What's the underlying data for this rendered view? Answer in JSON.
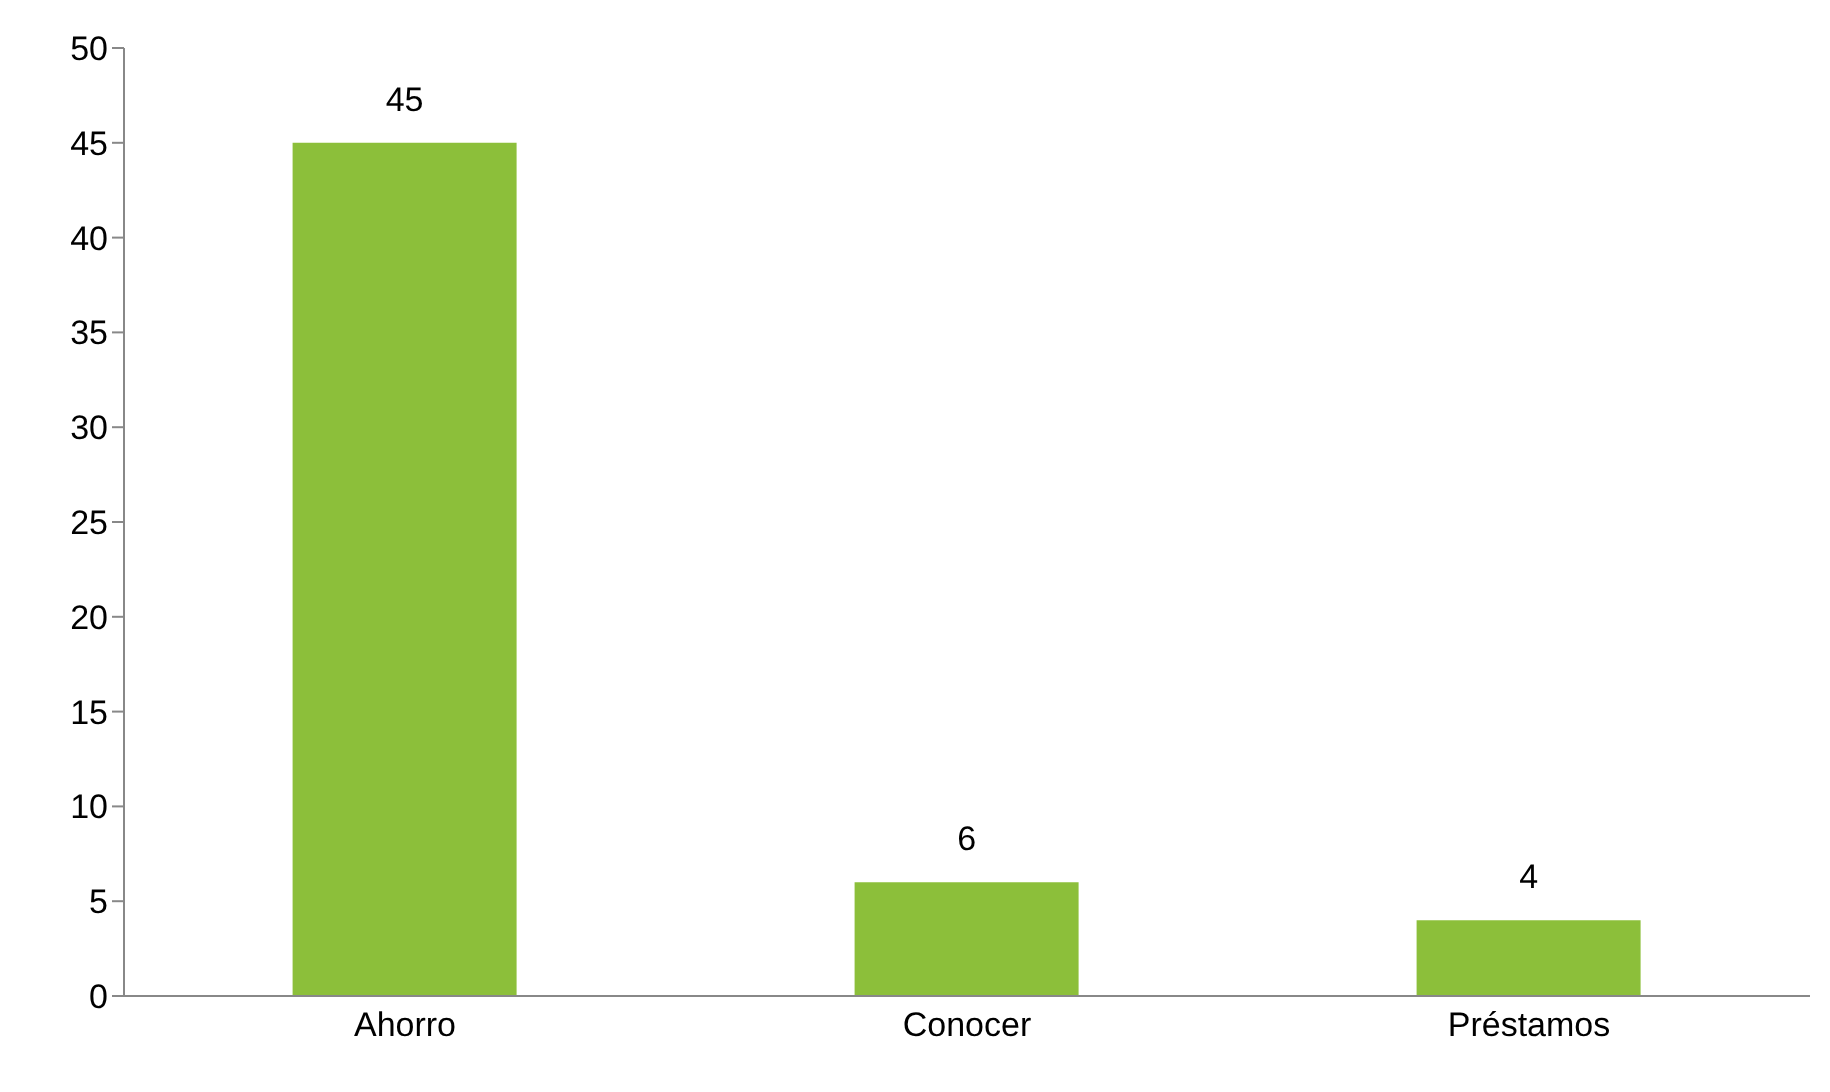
{
  "chart_data": {
    "type": "bar",
    "categories": [
      "Ahorro",
      "Conocer",
      "Préstamos"
    ],
    "values": [
      45,
      6,
      4
    ],
    "color": "#8cbf3a",
    "ylim": [
      0,
      50
    ],
    "yticks": [
      0,
      5,
      10,
      15,
      20,
      25,
      30,
      35,
      40,
      45,
      50
    ],
    "grid": false,
    "data_labels": true
  }
}
